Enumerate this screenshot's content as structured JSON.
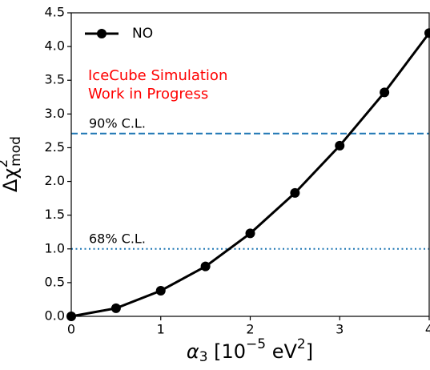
{
  "chart_data": {
    "type": "line",
    "xlabel": {
      "main": "α",
      "sub": "3",
      "rest": " [10",
      "exp": "−5",
      "unit": " eV",
      "unit_sup": "2",
      "close": "]"
    },
    "ylabel": {
      "main": "Δχ",
      "sup": "2",
      "sub": "mod"
    },
    "x": [
      0,
      0.5,
      1,
      1.5,
      2,
      2.5,
      3,
      3.5,
      4
    ],
    "series": [
      {
        "name": "NO",
        "color": "#000000",
        "values": [
          0,
          0.12,
          0.38,
          0.74,
          1.23,
          1.83,
          2.53,
          3.32,
          4.2
        ]
      }
    ],
    "xlim": [
      0,
      4
    ],
    "xticks": [
      0,
      1,
      2,
      3,
      4
    ],
    "ylim": [
      0,
      4.5
    ],
    "yticks": [
      {
        "value": 0,
        "label": "0.0"
      },
      {
        "value": 0.5,
        "label": "0.5"
      },
      {
        "value": 1,
        "label": "1.0"
      },
      {
        "value": 1.5,
        "label": "1.5"
      },
      {
        "value": 2,
        "label": "2.0"
      },
      {
        "value": 2.5,
        "label": "2.5"
      },
      {
        "value": 3,
        "label": "3.0"
      },
      {
        "value": 3.5,
        "label": "3.5"
      },
      {
        "value": 4,
        "label": "4.0"
      },
      {
        "value": 4.5,
        "label": "4.5"
      }
    ],
    "hlines": [
      {
        "value": 2.71,
        "label": "90% C.L.",
        "color": "#1f77b4",
        "style": "dashed"
      },
      {
        "value": 1,
        "label": "68% C.L.",
        "color": "#1f77b4",
        "style": "dotted"
      }
    ],
    "annotation": [
      "IceCube Simulation",
      "Work in Progress"
    ],
    "annotation_color": "#ff0000",
    "legend": "upper left"
  }
}
